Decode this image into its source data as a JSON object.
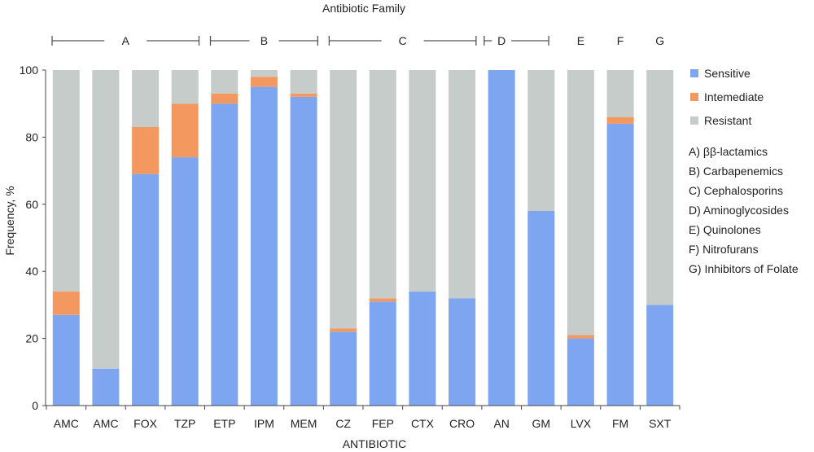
{
  "chart_data": {
    "type": "bar",
    "stacked": true,
    "title": "Antibiotic Family",
    "xlabel": "ANTIBIOTIC",
    "ylabel": "Frequency, %",
    "ylim": [
      0,
      100
    ],
    "yticks": [
      0,
      20,
      40,
      60,
      80,
      100
    ],
    "grid": false,
    "legend_position": "right",
    "categories": [
      "AMC",
      "AMC",
      "FOX",
      "TZP",
      "ETP",
      "IPM",
      "MEM",
      "CZ",
      "FEP",
      "CTX",
      "CRO",
      "AN",
      "GM",
      "LVX",
      "FM",
      "SXT"
    ],
    "series": [
      {
        "name": "Sensitive",
        "color": "#7ea6f0",
        "values": [
          27,
          11,
          69,
          74,
          90,
          95,
          92,
          22,
          31,
          34,
          32,
          100,
          58,
          20,
          84,
          30
        ]
      },
      {
        "name": "Intemediate",
        "color": "#f3985f",
        "values": [
          7,
          0,
          14,
          16,
          3,
          3,
          1,
          1,
          1,
          0,
          0,
          0,
          0,
          1,
          2,
          0
        ]
      },
      {
        "name": "Resistant",
        "color": "#c6ccca",
        "values": [
          66,
          89,
          17,
          10,
          7,
          2,
          7,
          77,
          68,
          66,
          68,
          0,
          42,
          79,
          14,
          70
        ]
      }
    ],
    "families": [
      {
        "label": "A",
        "first": 0,
        "last": 3
      },
      {
        "label": "B",
        "first": 4,
        "last": 6
      },
      {
        "label": "C",
        "first": 7,
        "last": 10
      },
      {
        "label": "D",
        "first": 11,
        "last": 11
      },
      {
        "label": "E",
        "first": 13,
        "last": 13
      },
      {
        "label": "F",
        "first": 14,
        "last": 14
      },
      {
        "label": "G",
        "first": 15,
        "last": 15
      }
    ],
    "family_legend": [
      "A) ββ-lactamics",
      "B) Carbapenemics",
      "C) Cephalosporins",
      "D) Aminoglycosides",
      "E) Quinolones",
      "F) Nitrofurans",
      "G) Inhibitors of Folate"
    ]
  }
}
